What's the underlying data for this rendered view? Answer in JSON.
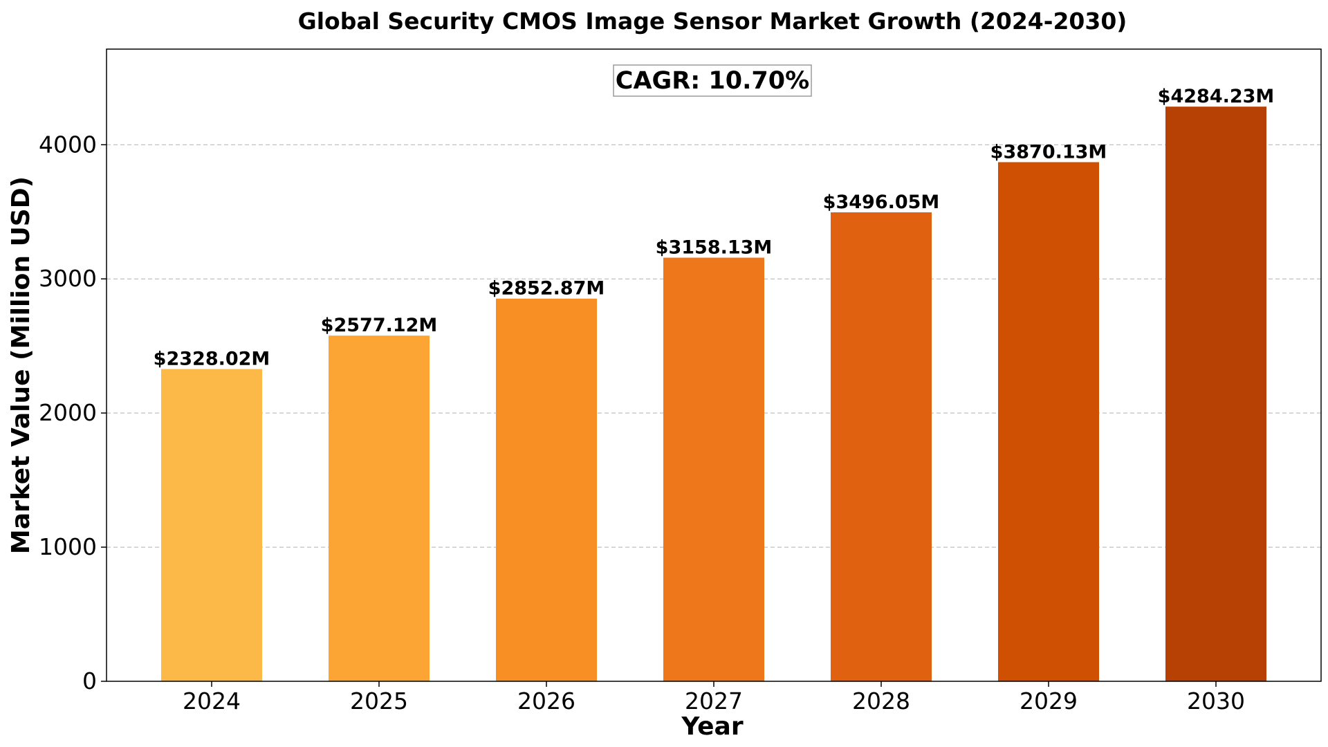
{
  "chart_data": {
    "type": "bar",
    "title": "Global Security CMOS Image Sensor Market Growth (2024-2030)",
    "xlabel": "Year",
    "ylabel": "Market Value (Million USD)",
    "categories": [
      "2024",
      "2025",
      "2026",
      "2027",
      "2028",
      "2029",
      "2030"
    ],
    "values": [
      2328.02,
      2577.12,
      2852.87,
      3158.13,
      3496.05,
      3870.13,
      4284.23
    ],
    "data_labels": [
      "$2328.02M",
      "$2577.12M",
      "$2852.87M",
      "$3158.13M",
      "$3496.05M",
      "$3870.13M",
      "$4284.23M"
    ],
    "bar_colors": [
      "#fdb947",
      "#fca434",
      "#f78f25",
      "#ee771b",
      "#e06110",
      "#cf5003",
      "#b74104"
    ],
    "ylim": [
      0,
      4713
    ],
    "yticks": [
      0,
      1000,
      2000,
      3000,
      4000
    ],
    "ytick_labels": [
      "0",
      "1000",
      "2000",
      "3000",
      "4000"
    ],
    "grid": "y-dashed",
    "annotation": "CAGR: 10.70%"
  }
}
